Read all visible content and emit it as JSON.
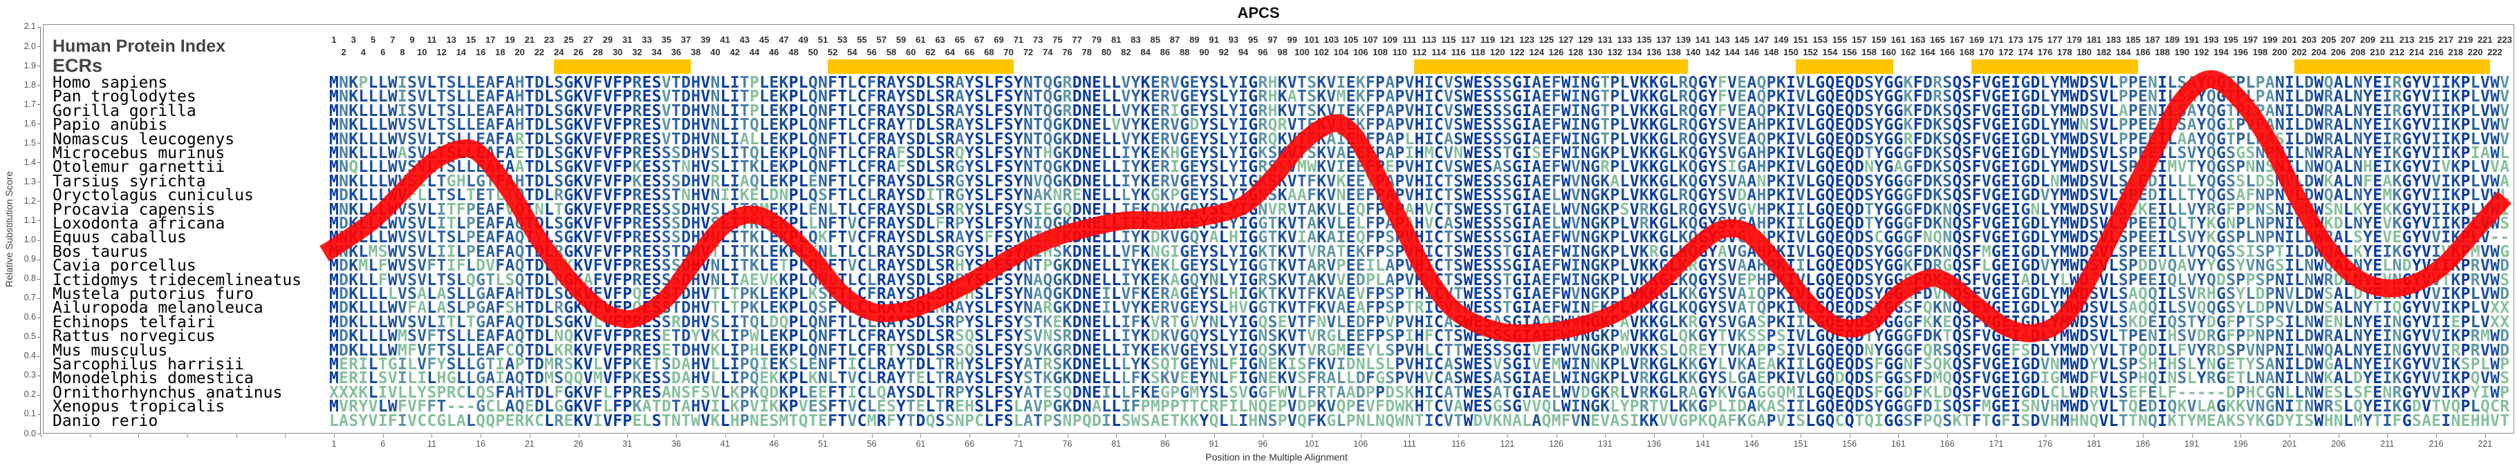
{
  "title": "APCS",
  "header": {
    "protein_index_label": "Human Protein Index",
    "ecrs_label": "ECRs"
  },
  "colors": {
    "ecr_bar": "#FFC600",
    "curve": "#FF0000",
    "conservation_scale": [
      "#0A3C9E",
      "#1C4F9E",
      "#2F64A0",
      "#4A7FA6",
      "#5E97A3",
      "#86C09C"
    ]
  },
  "alignment_length": 223,
  "ecr_ranges": [
    [
      24,
      37
    ],
    [
      52,
      70
    ],
    [
      112,
      139
    ],
    [
      151,
      160
    ],
    [
      169,
      185
    ],
    [
      202,
      221
    ]
  ],
  "species": [
    {
      "name": "Homo sapiens",
      "sequence": "MNKPLLWISVLTSLLEAFAHTDLSGKVFVFPRESVTDHVNLITPLEKPLQNFTLCFRAYSDLSRAYSLFSYNTQGRDNELLVYKERVGEYSLYIGRHKVTSKVIEKFPAPVHICVSWESSSGIAEFWINGTPLVKKGLRQGYFVEAQPKIVLGQEQDSYGGKFDRSQSFVGEIGDLYMWDSVLPPENILSAYQGTPLPANILDWQALNYEIRGYVIIKPLVWV"
    },
    {
      "name": "Pan troglodytes",
      "sequence": "MNKLLLWISVLTSLLEAFAHTDLSGKVFVFPRESVTDHVNLITPLEKPLQNFTLCFRAYSDLSRAYSLFSYNTQGRDNELLVYKERVGEYSLYIGRHKATSKVMEKFPAPVHICVSWESSSGIAEFWINGTPLVKKGLRQGYFVEAQPKIVLGQEQDSYGGKFDRSQSFVGEIGDLYMWDSVLPPENILSAYQGTPLPANILDWRALNYEIRGYVIIKPLVWV"
    },
    {
      "name": "Gorilla gorilla",
      "sequence": "MNKLLLWISVLTSLLEAFAHTDLSGKVFVFPRESVTDHVNLITPLEKPLQNFTLCFRAYSDLSRAYSLFSYNTQGRDNELLVYKERIGEYSLYIGRHKVTSKVIEKFPAPVHICVSWESSSGIAEFWINGTPLVKKGLRQGYFVEAQPKIVLGQEQDSYGGKFDKSQSFVGEIGDLYMWDSVLAPENILSAYQGTPLPANILDWRALNYEIRGYVIIKPLVWV"
    },
    {
      "name": "Papio anubis",
      "sequence": "MNKLLLWVSVLTSLLEAFAHTDLSGKVFVFPRESVTDHVNLITQLEKPLQNFTLCFRAYTDLSRAYSLFSYNTQGKDNELVVYKERVGDYSLYIGRQRVTFKVIEKFPAPVHICVSWESSSGIAEFWINGTPLVKKGLRQGYSVEAHPKIVLGQEQDSYGGKFDKSQSFVGEIGDLYMWNSVLPPEEILSAYQGIPVPANILDWRALNYEIKGYVIIKPLVWV"
    },
    {
      "name": "Nomascus leucogenys",
      "sequence": "MNKLLLWVSVLTSLLEAFARTDLSGKVFVFPRESVTDHVNLIALLEKPLQNFTLCFRAYSDLSRAYSLFSYNTQGKDNELLVYKERVGEYSLYIGRQKVTFKAIEKFPAPLHICASWESSSGIAEFWINGTPLVKKGLRQGYSVEAQPKIVLGQEQDSYGGRFDKSQSFVGEIGDLYMWDSVLPPEEILAAYQGTPLPASILDWRALNYEIRGYVIIKPLVWV"
    },
    {
      "name": "Microcebus murinus",
      "sequence": "MNKLLLWASVLTSLLEAFAETDLSGKVFVFPRESSSDHVSLITQLEKPLQNFTLCFRAFSDLSRQYSLFSYNTHGKDNELLIYKEKHGEYSLYIGKSKVTSKVAEEFPAPIHMCVNWESSTGISEFWINGKPLVKKGLKQGYSVGAHPKIVLGQEQDTYGGGFDKSQSFVGEIGDLYMWDSVLSPEEILSVYQGSGSNPNILNWRALNYEIKGYVIIKPIAWL"
    },
    {
      "name": "Otolemur garnettii",
      "sequence": "MNQLLLWVSVLTSLLEAFAATDLSGKVFVFPKESSTNHVSLITKLEKPLQNFTLCFRAFSDLSRGYSLFSYNTQGKDNELLIYKERIGEYSLYIGRSSVMWKVIEEFPEPVHICVSWESASGIAEFWVNGRPLVKKGLKQGYSIGAHPKIVLGQEQDNYGAGFDKSQSFVGEIGDLYMWDSVLSPVEIMVTYQGSPNNSNILNWQALNHEIKGYVIVKPLVVA"
    },
    {
      "name": "Tarsius syrichta",
      "sequence": "MNKLLLWVSILTGHLGTFAHTDLSGKVFVFPKESSSDHVRLIAQLEKPLENFTLCFRAYSDLSRGYSLFSYNVQGKDNELLIYKERVGEYSLYIGKSKVTFKVKEEYPAPVHICTSWESSSGIAEFWVNGKALVKKGLKQGYSVAANPKIVLGQEQDSYGGGFDKSQSFVGEIGDLNMWDSVLSLEDILLLYQGSSLDSNVLDWKALNFEAKGYVVIKPLVWA"
    },
    {
      "name": "Oryctolagus cuniculus",
      "sequence": "MDKLLLWVFLLTSLTETLTQTDLRGKVFVFPRESSTNHVNIIKELDNPLQSFTLCLRAYSDITRGYSLFSYNAKNRENELLLYKGKPGEYSLYIGNSKAAFKVNEEFPAPVHICTSWESSSGIAELWVNGKPLVKKGLRQGYSVDAHPKIVLGQEQDSYGGGFDKSQSFVGEIGDVYMWDSVLSPEDILLTYQGSAFNPNVLDWQALNYEMKGYVIIKPLVWL"
    },
    {
      "name": "Procavia capensis",
      "sequence": "MNKLLLWVSVLITFPEAFVQTNLTGKVFVFPRESSSDHVSLITQMEKPLENLTLCFRAYSDLSRRYSLFSYSIEGQDNELLIFKDKVGQYSLYIGNVRVTAKVLEQFPAPAHVCTSWESSTGIAELWVNGKPSVRKGLRQGYSVGVHPKIILGQEQDTYGGGFDKNQSFVGEIGNLYMWDSVLSEKEILLVYRGFPPNSNIMNWSNLKYEKKGYVIIKPLVWI"
    },
    {
      "name": "Loxodonta africana",
      "sequence": "MDKLLLWVSVLITLPEAFAQTDLSGKVFVFPRESSSDHVSLITKLEKPLLNFTVCFRAYSDLFRPYSLFSYNIQGKDNELLIFKSKVGEYSLYIGGTKVTAKVLELFPAPAHVCASWESSSGIAELWVNGKPLVRKGLKQGYSVGAHPKIILGQEQDTYGGGFDKNQSFVGEIGDLYMWDSVLSPEEIQLTYKGNPLNPNILSWKDLNYEVKGYVIIKPLVWS"
    },
    {
      "name": "Equus caballus",
      "sequence": "MNKLLLWVSVLTSLPEAFAQTYLSGKVFVFPRESSSDHVNLITKLEKPLQKFTVCFRAYSDLSRAYSFFSYNIRTKDNELLIYKDKVGQYALHIGGTKVIAKAIEQFPSPVHICTSWESSSGIAEFWVNGKPLVKKGLKQGYSVGVNPKIVLGQEQDSCGGGFNQNQSFVGEIGDLYMWDSVLSPEEILSVYKGSPLNPNILDWRALSYEVEGYVVIKPLV--"
    },
    {
      "name": "Bos taurus",
      "sequence": "MNKLMSWVSVLIILPEAFAQTDLRGKVFVFPRESSTDHVTLITKLEKPLKNLTLCLRAYSDLSRGYSLFSYNIHSKDNELLVFKNGIGEYSLYIGKTKVTVRATEKFPSPVHICTSWESSTGIAEFWINGKPLVKRGLKQGYAVGAHPKIVLGQEQDSYGGGFDKNQSFMGEIGDLYMWDSVLSPEEILLVYQGSSISPTILDWQALKYEIKGYVIVKPMVWG"
    },
    {
      "name": "Cavia porcellus",
      "sequence": "MDKMLFWVSVFTIFLDVFAQTDLDKKVFVFPRESSSDHVNLITKLETPLQEFTVCLRAYSDLSRHYSLFSYNTPGKDNELLIYKEKLGEYSLYIGGTKVTARVPEEILAPVHICTSWESSSGIAEFWINGKPLVKKGLKRGYSVAAHPKIILGQEQDSYGGKFDRGQSFLGEIGDVYMWDSVLSPDDVQAVYYGSYVNGSILNWQALNYELNDYVIIKPRVWD"
    },
    {
      "name": "Ictidomys tridecemlineatus",
      "sequence": "MDKLLFWVSVLTSLQGTLSQTDLRGKAFVFPRESSSDHVNLIAEVKKPLQNLTLCLRAYSDLSRPYSLFSYNAQGKDNELLIYKEKAGQYNLYIGRSKVTAKVVEDPLAPVHMCTSWESSTGIAEFWINGKPLVKKGLKQGYSVEPHPKIVLGQEQDSYGGSFDKSQSFVGEIADLYLWDTVLSPEEIQLVYQDSPPSPNILNWRDLNYEVNGYVVTKPRVWS"
    },
    {
      "name": "Mustela putorius furo",
      "sequence": "MDKLLLLVSALASLLGAFAHTDLSGKVFVFPQESSTDHVTLTPKLEKPLKSFTLCFRAYSDLSRPHSLFSYNAQGKDNEILVFKERAGEYSLHIGKTKVTFKVAEVFPSPTHICVTWESSTGIAEFWVNGKPLVKKGLKKGYSVAIQPKIVLGQEQDSYGGAFDVNQSFVGEIGDLYMWDSVLSAQQILSVRHGSYLDPNVLDWSALDYESRGYVVIKPLVWD"
    },
    {
      "name": "Ailuropoda melanoleuca",
      "sequence": "MDKLLLWVFALASLPGAFSHTDLRGKVFVFPQESSTDHVTLTPKLEKPLQSFTLCLRAYSDLNRAYSLFSYNARGKDNEILVYKERVGEYSLHVGGTKVTFKVAEAFPSPTRICVTWESSTGIAEFWINEKPLVKKGLKQGYSVATQPKIVLGQEQDSYGGSFQKNQSFVGEIGDLYMWDSVLSAQQILSVQQGSYLDPNVLDWSALNYTIQGYVVIKPLVXX"
    },
    {
      "name": "Echinops telfairi",
      "sequence": "MDKLLLWVSVLITLTGAFAQTDLSGKVLVFPRESSRDHVSLITQLDQPLQNFTLCLRAYSDLSRPYSLFSYSTKEKDNELLIFKVRTGVYNLYIGQSEVTFNVLEDFPVPVHICASWESASGIAQFWVNGKPAVKKGLKRGYSVGASPKIILGQEQDSYGGGFKKEQSFVGEIGDLYMWDSVLSKDEIQSTYDGFPTSPSILNWENLNYEINGYVIIEPLVXX"
    },
    {
      "name": "Rattus norvegicus",
      "sequence": "MDKLLLWMSVFTSLLEAFAQTDLNQKVFVFPRESETDYVKLIPWLEKPLQNFTLCFRAYSDLSRSQSLFSYSVNSRDNELLIYKDKVGQYSLYIGNSKVTVRGLEEFPSPIHFCTSWESSSGIAEFWVNGKPWVKKGLQKGYTVKSSPSIVLGQEQDTYGGGFDKTQSFVGEIADLYMWDSVLTPENIHSVDRGFPPNPNILDWRALNYEINGYVVIKPRMWD"
    },
    {
      "name": "Mus musculus",
      "sequence": "MDKLLLWMFVFTSLLEAFCQTDLKRKVFVFPRESETDHVKLIPHLEKPLQNFTLCFRTYSDLSRSQSLFSYSVKGRDNELLIYKEKVGEYSLYIGQSKVTVRGMEEYLSPVHLCTTWESSSGIVEFWVNGKPWVKKSLQREYTVKAPPSIVLGQEQDNYGGGFQRSQSFVGEFSDLYMWDYVLTPQDILFVYRDSPVNPNILNWQALNYEINGYVVIRPRVWD"
    },
    {
      "name": "Sarcophilus harrisii",
      "sequence": "MERILTGILVFYSLLGTIAPTDMRSKVLVFPKETSDAHVLLIPQIEKSLENFTICLRAYTDLTRHYSLFSYATRSKDNELLLYKSQTGEYNLFIGNEKISFKVIDNLSLPVHICASWESVSGIVEMWINNKPLVRKGLKKGYLVKAEAKIILGQEQDSFGGNFSQKQSFVGEIGDVNMWDYVLSPSHIHSLYNGETYSANILDWGALNYEIKGYVVIKSPLWP"
    },
    {
      "name": "Monodelphis domestica",
      "sequence": "MERILSVILILHGLLGAIAQTDMSQQVMVFPKESSDAHVLLIPQEKKPLKNLTVCLRAYTELTRAYSLFSYSTKGKDNELLLFKSKVEEYNLFIGNEKVSFRALLDFGSPVHVCASWESASGIAELWINGKPLVRKGLKKGYSLGAEPKIVLGQDQDSFGGSFDMQQSFVGEIGDIGMWDFVLSPHQINSLYRGETLNANILNWKALDYEIKGYVVIKPQVWS"
    },
    {
      "name": "Ornithorhynchus anatinus",
      "sequence": "XXXKLIVLLYSPRCLQSFAHTDLFGKVFLFPRESANSFSVLKPKQDKPLEEFTICLQAYSDLTRPYSLFSYATESQDNEILLFKEGPGMYSLSVGGFWVLFRTAADPPDSKHICATWESATGIAELWVDGKRLVRKGLRAGYKVGAGGQMILGQEQDSFGGDFKLDQSFVGEIGDLCLWDRVLSEFELF-----DPHCGNLLNWESLSFENRGYVVIKPYIWP"
    },
    {
      "name": "Xenopus tropicalis",
      "sequence": "MVRYVLWFVFFT---GCLAQEDLGGKVFLFPKATDTAHVILKPVIKKPVESFTVCLESYTELTREHSLFSLAVPGKDNALLIFPMPPTTCRFILNQEPVDPKVQPEVFDWKHTCVAWESGSGVVQLWINGKLYPRTVLKKGPLIDAKASIILGQEQDSYGGGFDISQSFMGEISNVHMWDYVLTQEDIQKVLAGKKVNGNIINWRSLQYEIKGDVTVQPLQCR"
    },
    {
      "name": "Danio rerio",
      "sequence": "LASYVIFIVCCGLALQQPERKCLREKVIVFPELSTNTWVKLHPNESMTQTEFTVCMRFYTDQSSNPCLFSLATPSNPQDILSWSAETKKYQLLIHNSPVQFKGLPNLNQWNTICVTWDVKNALAQMFVNEVASIKKVVGPKQAFKGAPVISLGQCQTQIGGSFPQSKTFTGFISDVHMHNQVLTTNQIKTYMEAKSYKGDYISWHNLMYTIFGSAEINEHHVT"
    }
  ],
  "chart_data": {
    "type": "line",
    "title": "APCS",
    "xlabel": "Position in the Multiple Alignment",
    "ylabel": "Relative Substitution Score",
    "xlim": [
      -29,
      223
    ],
    "ylim": [
      0.0,
      2.1
    ],
    "x_tick_step": 5,
    "x_tick_labels": [
      "1",
      "6",
      "11",
      "16",
      "21",
      "26",
      "31",
      "36",
      "41",
      "46",
      "51",
      "56",
      "61",
      "66",
      "71",
      "76",
      "81",
      "86",
      "91",
      "96",
      "101",
      "106",
      "111",
      "116",
      "121",
      "126",
      "131",
      "136",
      "141",
      "146",
      "151",
      "156",
      "161",
      "166",
      "171",
      "176",
      "181",
      "186",
      "191",
      "196",
      "201",
      "206",
      "211",
      "216",
      "221"
    ],
    "y_tick_labels": [
      "0.0",
      "0.1",
      "0.2",
      "0.3",
      "0.4",
      "0.5",
      "0.6",
      "0.7",
      "0.8",
      "0.9",
      "1.0",
      "1.1",
      "1.2",
      "1.3",
      "1.4",
      "1.5",
      "1.6",
      "1.7",
      "1.8",
      "1.9",
      "2.0",
      "2.1"
    ],
    "grid": false,
    "series": [
      {
        "name": "Relative Substitution Score",
        "x": [
          0,
          1,
          5,
          8,
          11,
          14,
          16,
          19,
          22,
          25,
          28,
          30,
          32,
          35,
          38,
          41,
          44,
          47,
          50,
          53,
          56,
          59,
          62,
          66,
          70,
          74,
          78,
          82,
          86,
          90,
          94,
          97,
          100,
          103,
          105,
          107,
          110,
          113,
          116,
          120,
          124,
          128,
          132,
          136,
          139,
          142,
          144,
          146,
          149,
          152,
          155,
          158,
          161,
          164,
          166,
          169,
          172,
          175,
          178,
          181,
          184,
          187,
          190,
          193,
          196,
          199,
          202,
          205,
          208,
          211,
          214,
          217,
          220,
          223
        ],
        "y": [
          0.93,
          0.96,
          1.1,
          1.25,
          1.4,
          1.47,
          1.44,
          1.25,
          1.0,
          0.8,
          0.65,
          0.6,
          0.6,
          0.7,
          0.9,
          1.08,
          1.13,
          1.05,
          0.9,
          0.72,
          0.63,
          0.63,
          0.68,
          0.78,
          0.9,
          1.0,
          1.06,
          1.1,
          1.1,
          1.12,
          1.18,
          1.32,
          1.5,
          1.6,
          1.56,
          1.4,
          1.1,
          0.8,
          0.62,
          0.53,
          0.52,
          0.55,
          0.62,
          0.75,
          0.9,
          1.03,
          1.06,
          1.02,
          0.85,
          0.66,
          0.55,
          0.57,
          0.72,
          0.8,
          0.78,
          0.66,
          0.55,
          0.52,
          0.6,
          0.85,
          1.15,
          1.45,
          1.72,
          1.83,
          1.72,
          1.5,
          1.2,
          0.95,
          0.8,
          0.75,
          0.78,
          0.88,
          1.05,
          1.22
        ]
      }
    ]
  }
}
